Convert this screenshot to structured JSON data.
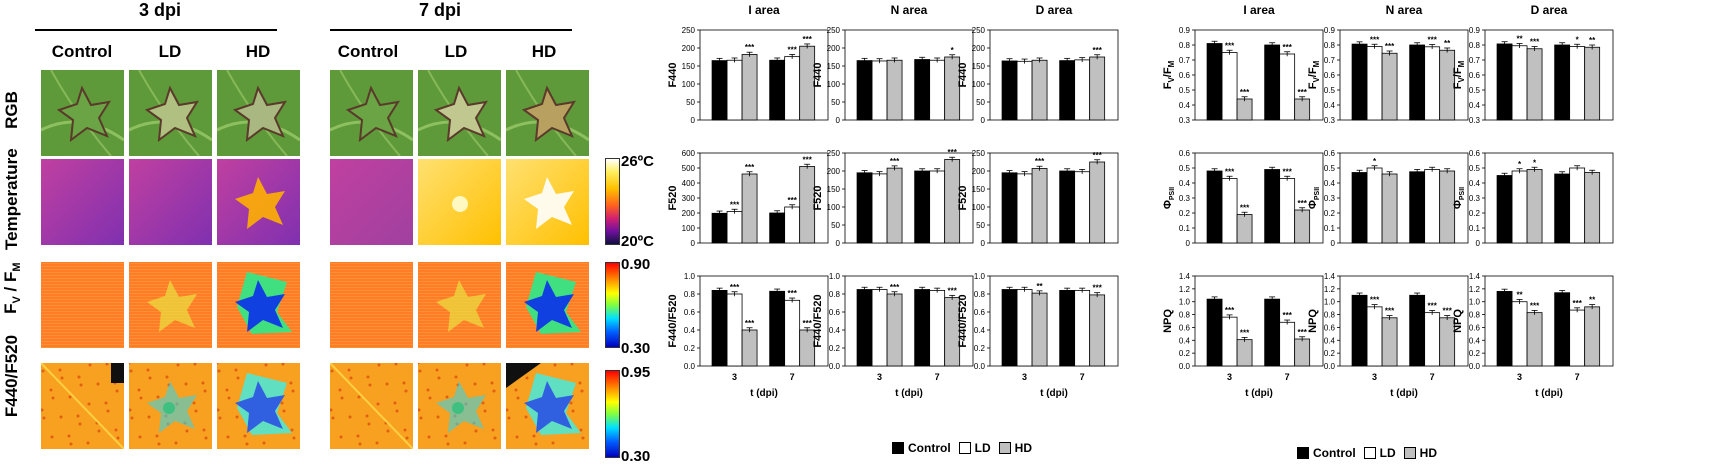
{
  "images": {
    "group_titles": [
      "3 dpi",
      "7 dpi"
    ],
    "col_headers": [
      "Control",
      "LD",
      "HD",
      "Control",
      "LD",
      "HD"
    ],
    "row_labels": [
      "RGB",
      "Temperature",
      "FV / FM",
      "F440/F520"
    ],
    "fvfm_label": {
      "main": "F",
      "s1": "V",
      "mid": " / F",
      "s2": "M"
    },
    "colorbars": [
      {
        "max": "26ºC",
        "min": "20ºC"
      },
      {
        "max": "0.90",
        "min": "0.30"
      },
      {
        "max": "0.95",
        "min": "0.30"
      }
    ]
  },
  "legend": {
    "items": [
      "Control",
      "LD",
      "HD"
    ],
    "colors": [
      "#000000",
      "#ffffff",
      "#c0c0c0"
    ]
  },
  "xlabel": "t (dpi)",
  "chart_data": [
    {
      "type": "bar",
      "title": "I area",
      "ylabel": "F440",
      "ylim": [
        0,
        250
      ],
      "yticks": [
        "0",
        "50",
        "100",
        "150",
        "200",
        "250"
      ],
      "categories": [
        "3",
        "7"
      ],
      "series": [
        {
          "name": "Control",
          "values": [
            165,
            166
          ]
        },
        {
          "name": "LD",
          "values": [
            166,
            176
          ]
        },
        {
          "name": "HD",
          "values": [
            182,
            205
          ]
        }
      ],
      "sig": [
        [
          "",
          "",
          "***"
        ],
        [
          "",
          "***",
          "***"
        ]
      ]
    },
    {
      "type": "bar",
      "title": "N area",
      "ylabel": "F440",
      "ylim": [
        0,
        250
      ],
      "yticks": [
        "0",
        "50",
        "100",
        "150",
        "200",
        "250"
      ],
      "categories": [
        "3",
        "7"
      ],
      "series": [
        {
          "name": "Control",
          "values": [
            165,
            168
          ]
        },
        {
          "name": "LD",
          "values": [
            164,
            166
          ]
        },
        {
          "name": "HD",
          "values": [
            166,
            175
          ]
        }
      ],
      "sig": [
        [
          "",
          "",
          ""
        ],
        [
          "",
          "",
          "*"
        ]
      ]
    },
    {
      "type": "bar",
      "title": "D area",
      "ylabel": "F440",
      "ylim": [
        0,
        250
      ],
      "yticks": [
        "0",
        "50",
        "100",
        "150",
        "200",
        "250"
      ],
      "categories": [
        "3",
        "7"
      ],
      "series": [
        {
          "name": "Control",
          "values": [
            164,
            165
          ]
        },
        {
          "name": "LD",
          "values": [
            163,
            167
          ]
        },
        {
          "name": "HD",
          "values": [
            166,
            175
          ]
        }
      ],
      "sig": [
        [
          "",
          "",
          ""
        ],
        [
          "",
          "",
          "***"
        ]
      ]
    },
    {
      "type": "bar",
      "title": "I area",
      "ylabel": "FV/FM",
      "ylim": [
        0.3,
        0.9
      ],
      "yticks": [
        "0.3",
        "0.4",
        "0.5",
        "0.6",
        "0.7",
        "0.8",
        "0.9"
      ],
      "categories": [
        "3",
        "7"
      ],
      "series": [
        {
          "name": "Control",
          "values": [
            0.81,
            0.8
          ]
        },
        {
          "name": "LD",
          "values": [
            0.75,
            0.74
          ]
        },
        {
          "name": "HD",
          "values": [
            0.44,
            0.44
          ]
        }
      ],
      "sig": [
        [
          "",
          "***",
          "***"
        ],
        [
          "",
          "***",
          "***"
        ]
      ]
    },
    {
      "type": "bar",
      "title": "N area",
      "ylabel": "FV/FM",
      "ylim": [
        0.3,
        0.9
      ],
      "yticks": [
        "0.3",
        "0.4",
        "0.5",
        "0.6",
        "0.7",
        "0.8",
        "0.9"
      ],
      "categories": [
        "3",
        "7"
      ],
      "series": [
        {
          "name": "Control",
          "values": [
            0.806,
            0.8
          ]
        },
        {
          "name": "LD",
          "values": [
            0.79,
            0.788
          ]
        },
        {
          "name": "HD",
          "values": [
            0.745,
            0.765
          ]
        }
      ],
      "sig": [
        [
          "",
          "***",
          "***"
        ],
        [
          "",
          "***",
          "**"
        ]
      ]
    },
    {
      "type": "bar",
      "title": "D area",
      "ylabel": "FV/FM",
      "ylim": [
        0.3,
        0.9
      ],
      "yticks": [
        "0.3",
        "0.4",
        "0.5",
        "0.6",
        "0.7",
        "0.8",
        "0.9"
      ],
      "categories": [
        "3",
        "7"
      ],
      "series": [
        {
          "name": "Control",
          "values": [
            0.807,
            0.8
          ]
        },
        {
          "name": "LD",
          "values": [
            0.795,
            0.79
          ]
        },
        {
          "name": "HD",
          "values": [
            0.775,
            0.785
          ]
        }
      ],
      "sig": [
        [
          "",
          "**",
          "***"
        ],
        [
          "",
          "*",
          "**"
        ]
      ]
    },
    {
      "type": "bar",
      "title": "",
      "ylabel": "F520",
      "ylim": [
        0,
        600
      ],
      "yticks": [
        "0",
        "100",
        "200",
        "300",
        "400",
        "500",
        "600"
      ],
      "categories": [
        "3",
        "7"
      ],
      "series": [
        {
          "name": "Control",
          "values": [
            198,
            200
          ]
        },
        {
          "name": "LD",
          "values": [
            210,
            240
          ]
        },
        {
          "name": "HD",
          "values": [
            460,
            510
          ]
        }
      ],
      "sig": [
        [
          "",
          "***",
          "***"
        ],
        [
          "",
          "***",
          "***"
        ]
      ]
    },
    {
      "type": "bar",
      "title": "",
      "ylabel": "F520",
      "ylim": [
        0,
        250
      ],
      "yticks": [
        "0",
        "50",
        "100",
        "150",
        "200",
        "250"
      ],
      "categories": [
        "3",
        "7"
      ],
      "series": [
        {
          "name": "Control",
          "values": [
            195,
            200
          ]
        },
        {
          "name": "LD",
          "values": [
            192,
            200
          ]
        },
        {
          "name": "HD",
          "values": [
            208,
            232
          ]
        }
      ],
      "sig": [
        [
          "",
          "",
          "***"
        ],
        [
          "",
          "",
          "***"
        ]
      ]
    },
    {
      "type": "bar",
      "title": "",
      "ylabel": "F520",
      "ylim": [
        0,
        250
      ],
      "yticks": [
        "0",
        "50",
        "100",
        "150",
        "200",
        "250"
      ],
      "categories": [
        "3",
        "7"
      ],
      "series": [
        {
          "name": "Control",
          "values": [
            195,
            200
          ]
        },
        {
          "name": "LD",
          "values": [
            192,
            198
          ]
        },
        {
          "name": "HD",
          "values": [
            207,
            225
          ]
        }
      ],
      "sig": [
        [
          "",
          "",
          "***"
        ],
        [
          "",
          "",
          "***"
        ]
      ]
    },
    {
      "type": "bar",
      "title": "",
      "ylabel": "ΦPSII",
      "ylim": [
        0,
        0.6
      ],
      "yticks": [
        "0",
        "0.1",
        "0.2",
        "0.3",
        "0.4",
        "0.5",
        "0.6"
      ],
      "categories": [
        "3",
        "7"
      ],
      "series": [
        {
          "name": "Control",
          "values": [
            0.48,
            0.49
          ]
        },
        {
          "name": "LD",
          "values": [
            0.43,
            0.43
          ]
        },
        {
          "name": "HD",
          "values": [
            0.19,
            0.22
          ]
        }
      ],
      "sig": [
        [
          "",
          "***",
          "***"
        ],
        [
          "",
          "***",
          "***"
        ]
      ]
    },
    {
      "type": "bar",
      "title": "",
      "ylabel": "ΦPSII",
      "ylim": [
        0,
        0.6
      ],
      "yticks": [
        "0",
        "0.1",
        "0.2",
        "0.3",
        "0.4",
        "0.5",
        "0.6"
      ],
      "categories": [
        "3",
        "7"
      ],
      "series": [
        {
          "name": "Control",
          "values": [
            0.47,
            0.475
          ]
        },
        {
          "name": "LD",
          "values": [
            0.5,
            0.49
          ]
        },
        {
          "name": "HD",
          "values": [
            0.46,
            0.48
          ]
        }
      ],
      "sig": [
        [
          "",
          "*",
          ""
        ],
        [
          "",
          "",
          ""
        ]
      ]
    },
    {
      "type": "bar",
      "title": "",
      "ylabel": "ΦPSII",
      "ylim": [
        0,
        0.6
      ],
      "yticks": [
        "0",
        "0.1",
        "0.2",
        "0.3",
        "0.4",
        "0.5",
        "0.6"
      ],
      "categories": [
        "3",
        "7"
      ],
      "series": [
        {
          "name": "Control",
          "values": [
            0.45,
            0.46
          ]
        },
        {
          "name": "LD",
          "values": [
            0.48,
            0.5
          ]
        },
        {
          "name": "HD",
          "values": [
            0.49,
            0.47
          ]
        }
      ],
      "sig": [
        [
          "",
          "*",
          "*"
        ],
        [
          "",
          "",
          ""
        ]
      ]
    },
    {
      "type": "bar",
      "title": "",
      "ylabel": "F440/F520",
      "ylim": [
        0,
        1.0
      ],
      "yticks": [
        "0.0",
        "0.2",
        "0.4",
        "0.6",
        "0.8",
        "1.0"
      ],
      "categories": [
        "3",
        "7"
      ],
      "series": [
        {
          "name": "Control",
          "values": [
            0.84,
            0.83
          ]
        },
        {
          "name": "LD",
          "values": [
            0.8,
            0.73
          ]
        },
        {
          "name": "HD",
          "values": [
            0.4,
            0.4
          ]
        }
      ],
      "sig": [
        [
          "",
          "***",
          "***"
        ],
        [
          "",
          "***",
          "***"
        ]
      ]
    },
    {
      "type": "bar",
      "title": "",
      "ylabel": "F440/F520",
      "ylim": [
        0,
        1.0
      ],
      "yticks": [
        "0.0",
        "0.2",
        "0.4",
        "0.6",
        "0.8",
        "1.0"
      ],
      "categories": [
        "3",
        "7"
      ],
      "series": [
        {
          "name": "Control",
          "values": [
            0.85,
            0.85
          ]
        },
        {
          "name": "LD",
          "values": [
            0.85,
            0.84
          ]
        },
        {
          "name": "HD",
          "values": [
            0.8,
            0.76
          ]
        }
      ],
      "sig": [
        [
          "",
          "",
          "***"
        ],
        [
          "",
          "",
          "***"
        ]
      ]
    },
    {
      "type": "bar",
      "title": "",
      "ylabel": "F440/F520",
      "ylim": [
        0,
        1.0
      ],
      "yticks": [
        "0.0",
        "0.2",
        "0.4",
        "0.6",
        "0.8",
        "1.0"
      ],
      "categories": [
        "3",
        "7"
      ],
      "series": [
        {
          "name": "Control",
          "values": [
            0.85,
            0.84
          ]
        },
        {
          "name": "LD",
          "values": [
            0.85,
            0.84
          ]
        },
        {
          "name": "HD",
          "values": [
            0.81,
            0.79
          ]
        }
      ],
      "sig": [
        [
          "",
          "",
          "**"
        ],
        [
          "",
          "",
          "***"
        ]
      ]
    },
    {
      "type": "bar",
      "title": "",
      "ylabel": "NPQ",
      "ylim": [
        0,
        1.4
      ],
      "yticks": [
        "0.0",
        "0.2",
        "0.4",
        "0.6",
        "0.8",
        "1.0",
        "1.2",
        "1.4"
      ],
      "categories": [
        "3",
        "7"
      ],
      "series": [
        {
          "name": "Control",
          "values": [
            1.04,
            1.04
          ]
        },
        {
          "name": "LD",
          "values": [
            0.76,
            0.68
          ]
        },
        {
          "name": "HD",
          "values": [
            0.41,
            0.42
          ]
        }
      ],
      "sig": [
        [
          "",
          "***",
          "***"
        ],
        [
          "",
          "***",
          "***"
        ]
      ]
    },
    {
      "type": "bar",
      "title": "",
      "ylabel": "NPQ",
      "ylim": [
        0,
        1.4
      ],
      "yticks": [
        "0.0",
        "0.2",
        "0.4",
        "0.6",
        "0.8",
        "1.0",
        "1.2",
        "1.4"
      ],
      "categories": [
        "3",
        "7"
      ],
      "series": [
        {
          "name": "Control",
          "values": [
            1.1,
            1.1
          ]
        },
        {
          "name": "LD",
          "values": [
            0.92,
            0.83
          ]
        },
        {
          "name": "HD",
          "values": [
            0.75,
            0.75
          ]
        }
      ],
      "sig": [
        [
          "",
          "***",
          "***"
        ],
        [
          "",
          "***",
          "***"
        ]
      ]
    },
    {
      "type": "bar",
      "title": "",
      "ylabel": "NPQ",
      "ylim": [
        0,
        1.4
      ],
      "yticks": [
        "0.0",
        "0.2",
        "0.4",
        "0.6",
        "0.8",
        "1.0",
        "1.2",
        "1.4"
      ],
      "categories": [
        "3",
        "7"
      ],
      "series": [
        {
          "name": "Control",
          "values": [
            1.16,
            1.14
          ]
        },
        {
          "name": "LD",
          "values": [
            1.0,
            0.87
          ]
        },
        {
          "name": "HD",
          "values": [
            0.83,
            0.92
          ]
        }
      ],
      "sig": [
        [
          "",
          "**",
          "***"
        ],
        [
          "",
          "***",
          "**"
        ]
      ]
    }
  ]
}
